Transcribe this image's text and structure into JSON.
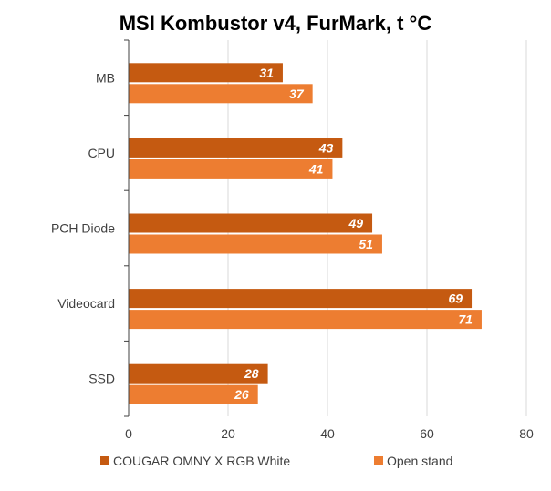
{
  "chart_data": {
    "type": "bar",
    "orientation": "horizontal",
    "title": "MSI Kombustor v4, FurMark, t °C",
    "categories": [
      "MB",
      "CPU",
      "PCH Diode",
      "Videocard",
      "SSD"
    ],
    "series": [
      {
        "name": "COUGAR OMNY X RGB White",
        "values": [
          31,
          43,
          49,
          69,
          28
        ],
        "color": "#c55a11"
      },
      {
        "name": "Open stand",
        "values": [
          37,
          41,
          51,
          71,
          26
        ],
        "color": "#ed7d31"
      }
    ],
    "xlim": [
      0,
      80
    ],
    "xticks": [
      "0",
      "20",
      "40",
      "60",
      "80"
    ],
    "grid": true,
    "legend_position": "bottom"
  }
}
